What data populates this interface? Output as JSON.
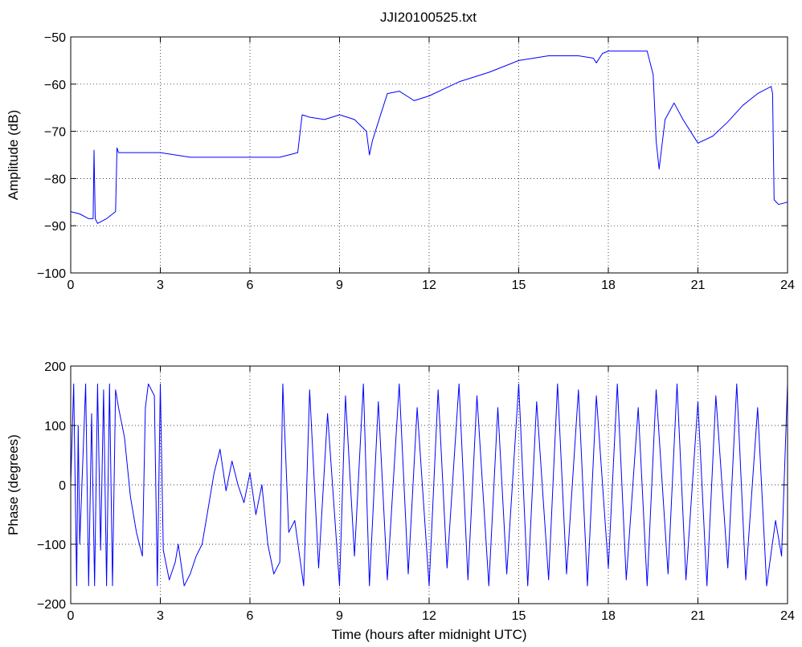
{
  "figure": {
    "title": "JJI20100525.txt"
  },
  "style": {
    "series_color": "#0000ff",
    "background": "#ffffff",
    "axes_color": "#000000"
  },
  "chart_data": [
    {
      "type": "line",
      "title": "JJI20100525.txt",
      "xlabel": "",
      "ylabel": "Amplitude (dB)",
      "xlim": [
        0,
        24
      ],
      "ylim": [
        -100,
        -50
      ],
      "xticks": [
        0,
        3,
        6,
        9,
        12,
        15,
        18,
        21,
        24
      ],
      "yticks": [
        -100,
        -90,
        -80,
        -70,
        -60,
        -50
      ],
      "grid": true,
      "series": [
        {
          "x": [
            0,
            0.3,
            0.6,
            0.75,
            0.78,
            0.82,
            0.9,
            1.2,
            1.5,
            1.55,
            1.6,
            2.0,
            3.0,
            4.0,
            5.0,
            6.0,
            7.0,
            7.6,
            7.75,
            8.0,
            8.5,
            9.0,
            9.5,
            9.9,
            10.0,
            10.1,
            10.3,
            10.6,
            11.0,
            11.5,
            12.0,
            12.5,
            13.0,
            14.0,
            15.0,
            16.0,
            17.0,
            17.5,
            17.6,
            17.8,
            18.0,
            18.5,
            19.0,
            19.3,
            19.5,
            19.6,
            19.7,
            19.9,
            20.2,
            20.5,
            21.0,
            21.5,
            22.0,
            22.5,
            23.0,
            23.45,
            23.5,
            23.55,
            23.7,
            24.0
          ],
          "y": [
            -87,
            -87.5,
            -88.5,
            -88.5,
            -74,
            -88.5,
            -89.5,
            -88.5,
            -87,
            -73.5,
            -74.5,
            -74.5,
            -74.5,
            -75.5,
            -75.5,
            -75.5,
            -75.5,
            -74.5,
            -66.5,
            -67,
            -67.5,
            -66.5,
            -67.5,
            -70,
            -75,
            -72,
            -68,
            -62,
            -61.5,
            -63.5,
            -62.5,
            -61,
            -59.5,
            -57.5,
            -55,
            -54,
            -54,
            -54.5,
            -55.5,
            -53.5,
            -53,
            -53,
            -53,
            -53,
            -58,
            -72,
            -78,
            -67.5,
            -64,
            -67.5,
            -72.5,
            -71,
            -68,
            -64.5,
            -62,
            -60.5,
            -62,
            -84.5,
            -85.5,
            -85
          ]
        }
      ]
    },
    {
      "type": "line",
      "title": "",
      "xlabel": "Time (hours after midnight UTC)",
      "ylabel": "Phase (degrees)",
      "xlim": [
        0,
        24
      ],
      "ylim": [
        -200,
        200
      ],
      "xticks": [
        0,
        3,
        6,
        9,
        12,
        15,
        18,
        21,
        24
      ],
      "yticks": [
        -200,
        -100,
        0,
        100,
        200
      ],
      "grid": true,
      "series": [
        {
          "x": [
            0,
            0.1,
            0.2,
            0.25,
            0.3,
            0.5,
            0.6,
            0.7,
            0.8,
            0.9,
            1.0,
            1.1,
            1.2,
            1.3,
            1.4,
            1.5,
            1.6,
            1.8,
            2.0,
            2.2,
            2.4,
            2.5,
            2.6,
            2.8,
            2.9,
            3.0,
            3.1,
            3.3,
            3.5,
            3.6,
            3.8,
            4.0,
            4.2,
            4.4,
            4.6,
            4.8,
            5.0,
            5.2,
            5.4,
            5.6,
            5.8,
            6.0,
            6.2,
            6.4,
            6.6,
            6.8,
            7.0,
            7.1,
            7.3,
            7.5,
            7.8,
            8.0,
            8.3,
            8.6,
            9.0,
            9.2,
            9.5,
            9.8,
            10.0,
            10.3,
            10.6,
            11.0,
            11.3,
            11.6,
            12.0,
            12.3,
            12.6,
            13.0,
            13.3,
            13.6,
            14.0,
            14.3,
            14.6,
            15.0,
            15.3,
            15.6,
            16.0,
            16.3,
            16.6,
            17.0,
            17.3,
            17.6,
            18.0,
            18.3,
            18.6,
            19.0,
            19.3,
            19.6,
            20.0,
            20.3,
            20.6,
            21.0,
            21.3,
            21.6,
            22.0,
            22.3,
            22.6,
            23.0,
            23.3,
            23.6,
            23.8,
            24.0
          ],
          "y": [
            0,
            170,
            -170,
            100,
            -100,
            170,
            -170,
            120,
            -170,
            170,
            -110,
            160,
            -170,
            170,
            -170,
            160,
            130,
            80,
            -20,
            -80,
            -120,
            130,
            170,
            150,
            -170,
            170,
            -110,
            -160,
            -130,
            -100,
            -170,
            -150,
            -120,
            -100,
            -40,
            20,
            60,
            -10,
            40,
            0,
            -30,
            20,
            -50,
            0,
            -100,
            -150,
            -130,
            170,
            -80,
            -60,
            -170,
            160,
            -140,
            120,
            -170,
            150,
            -120,
            170,
            -170,
            140,
            -160,
            170,
            -150,
            130,
            -170,
            160,
            -140,
            170,
            -160,
            150,
            -170,
            130,
            -150,
            170,
            -170,
            140,
            -160,
            170,
            -150,
            160,
            -170,
            150,
            -140,
            170,
            -160,
            130,
            -170,
            160,
            -150,
            170,
            -160,
            140,
            -170,
            150,
            -140,
            170,
            -160,
            130,
            -170,
            -60,
            -120,
            170
          ]
        }
      ]
    }
  ]
}
